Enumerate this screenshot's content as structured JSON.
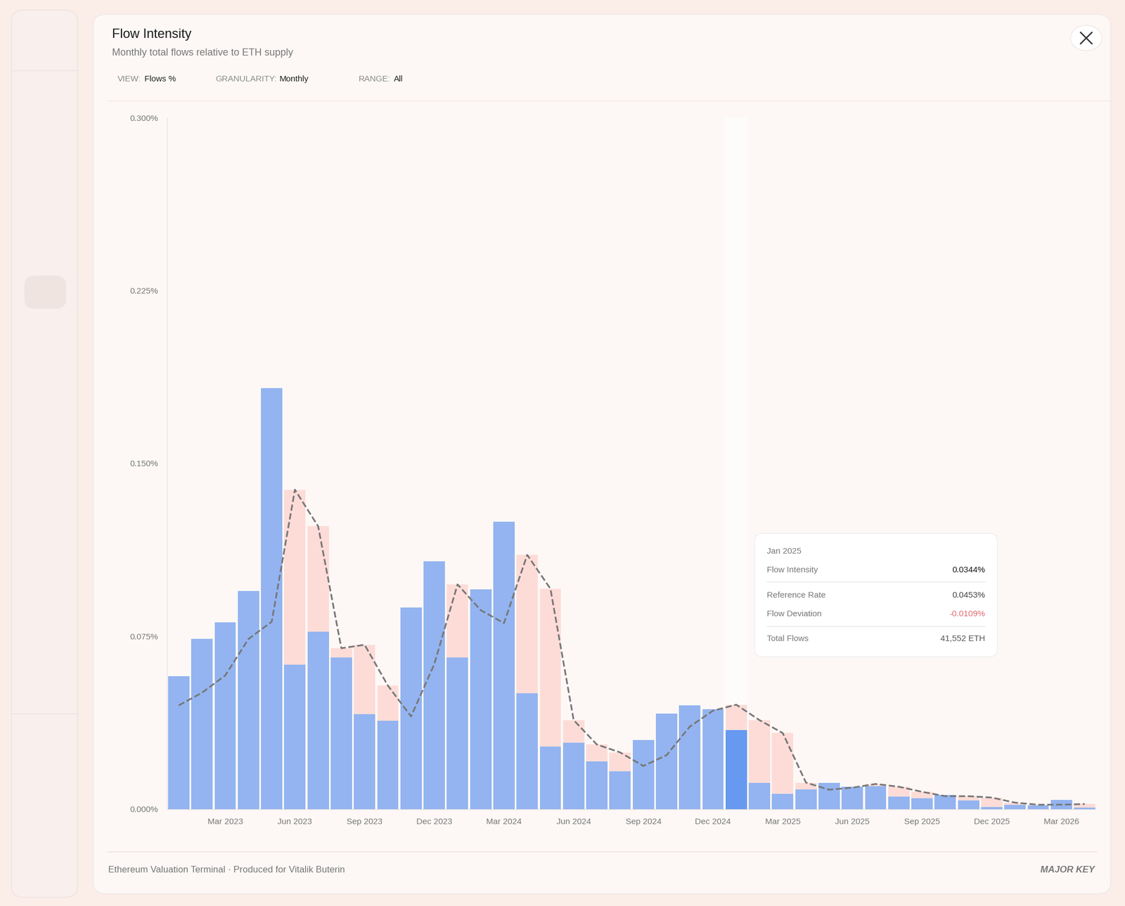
{
  "chart_data": {
    "type": "bar",
    "title": "Flow Intensity",
    "subtitle": "Monthly total flows relative to ETH supply",
    "categories": [
      null,
      null,
      "Mar 2023",
      null,
      null,
      "Jun 2023",
      null,
      null,
      "Sep 2023",
      null,
      null,
      "Dec 2023",
      null,
      null,
      "Mar 2024",
      null,
      null,
      "Jun 2024",
      null,
      null,
      "Sep 2024",
      null,
      null,
      "Dec 2024",
      null,
      null,
      "Mar 2025",
      null,
      null,
      "Jun 2025",
      null,
      null,
      "Sep 2025",
      null,
      null,
      "Dec 2025",
      null,
      null,
      "Mar 2026",
      null
    ],
    "series": [
      {
        "name": "Reference Rate",
        "type": "bar",
        "color": "#fddcd8",
        "line_style": "dashed",
        "values": [
          0.045,
          0.0505,
          0.058,
          0.0738,
          0.0813,
          0.1386,
          0.1227,
          0.0698,
          0.0713,
          0.0536,
          0.0402,
          0.0629,
          0.0975,
          0.0863,
          0.0807,
          0.1103,
          0.0956,
          0.0386,
          0.028,
          0.0246,
          0.0187,
          0.0234,
          0.0358,
          0.0427,
          0.0453,
          0.0386,
          0.033,
          0.0115,
          0.0084,
          0.0093,
          0.0109,
          0.0097,
          0.0075,
          0.0056,
          0.0056,
          0.005,
          0.0028,
          0.0019,
          0.0019,
          0.0022
        ]
      },
      {
        "name": "Flow Intensity",
        "type": "bar",
        "colors": [
          "#93b4f0",
          "#93b4f0",
          "#93b4f0",
          "#93b4f0",
          "#93b4f0",
          "#93b4f0",
          "#93b4f0",
          "#93b4f0",
          "#93b4f0",
          "#93b4f0",
          "#93b4f0",
          "#93b4f0",
          "#93b4f0",
          "#93b4f0",
          "#93b4f0",
          "#93b4f0",
          "#93b4f0",
          "#93b4f0",
          "#93b4f0",
          "#93b4f0",
          "#93b4f0",
          "#93b4f0",
          "#93b4f0",
          "#93b4f0",
          "#6699ef",
          "#93b4f0",
          "#93b4f0",
          "#93b4f0",
          "#93b4f0",
          "#93b4f0",
          "#93b4f0",
          "#93b4f0",
          "#93b4f0",
          "#93b4f0",
          "#93b4f0",
          "#93b4f0",
          "#93b4f0",
          "#93b4f0",
          "#93b4f0",
          "#93b4f0"
        ],
        "values": [
          0.0576,
          0.0738,
          0.081,
          0.0947,
          0.1826,
          0.0626,
          0.0769,
          0.0657,
          0.0411,
          0.0383,
          0.0875,
          0.1075,
          0.0657,
          0.0953,
          0.1246,
          0.0502,
          0.0271,
          0.0287,
          0.0206,
          0.0165,
          0.0299,
          0.0414,
          0.0449,
          0.0433,
          0.0344,
          0.0115,
          0.0065,
          0.0084,
          0.0115,
          0.0097,
          0.01,
          0.0053,
          0.0047,
          0.0062,
          0.0037,
          0.0009,
          0.0019,
          0.0016,
          0.004,
          0.0006
        ]
      }
    ],
    "ylim": [
      0,
      0.3
    ],
    "yticks": [
      {
        "value": 0,
        "label": "0.000%"
      },
      {
        "value": 0.075,
        "label": "0.075%"
      },
      {
        "value": 0.15,
        "label": "0.150%"
      },
      {
        "value": 0.225,
        "label": "0.225%"
      },
      {
        "value": 0.3,
        "label": "0.300%"
      }
    ],
    "grid": false
  },
  "controls": [
    {
      "label": "VIEW:",
      "value": "Flows %"
    },
    {
      "label": "GRANULARITY:",
      "value": "Monthly"
    },
    {
      "label": "RANGE:",
      "value": "All"
    }
  ],
  "tooltip": {
    "title": "Jan 2025",
    "rows": [
      {
        "label": "Flow Intensity",
        "value": "0.0344%"
      },
      {
        "label": "Reference Rate",
        "value": "0.0453%"
      },
      {
        "label": "Flow Deviation",
        "value": "-0.0109%"
      },
      {
        "label": "Total Flows",
        "value": "41,552 ETH"
      }
    ]
  },
  "footer": "Ethereum Valuation Terminal · Produced for Vitalik Buterin",
  "brand": "MAJOR KEY"
}
